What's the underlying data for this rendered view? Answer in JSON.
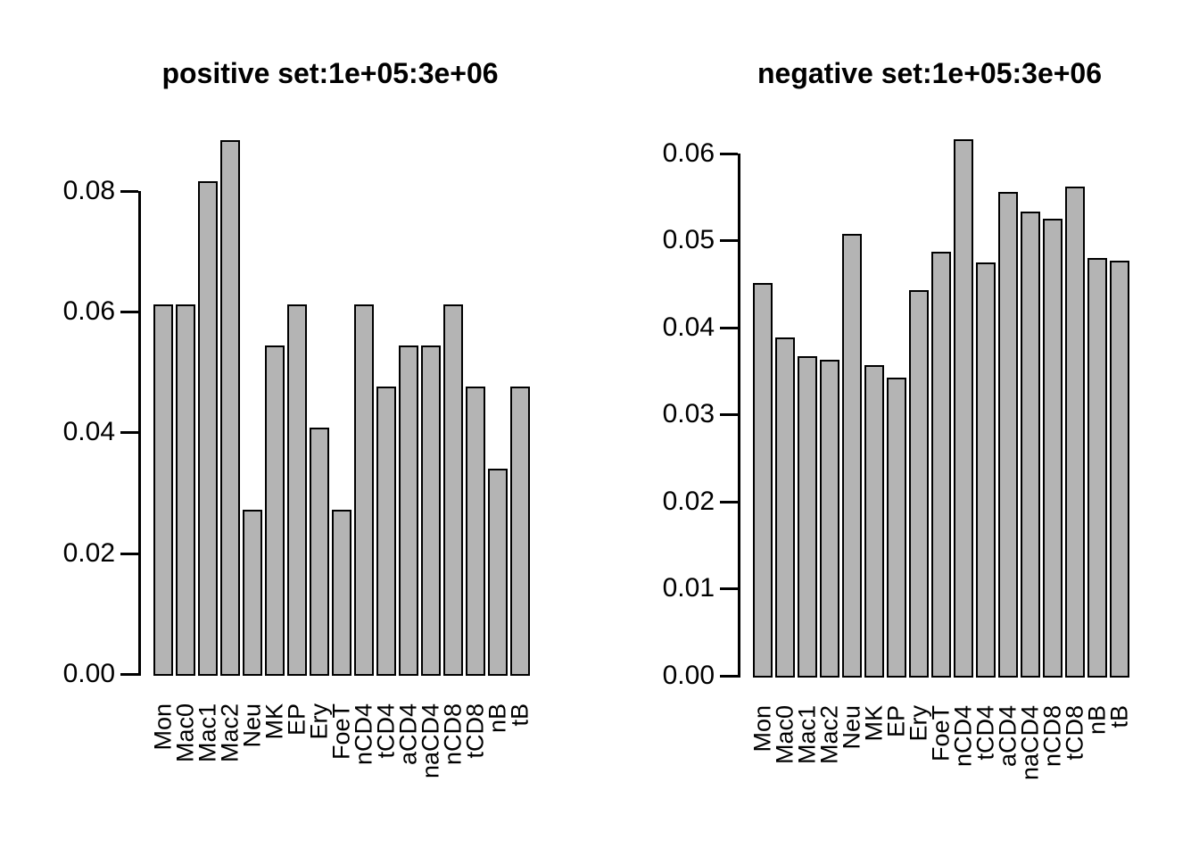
{
  "figure": {
    "background": "#ffffff",
    "text_color": "#000000"
  },
  "chart_data": [
    {
      "type": "bar",
      "title": "positive set:1e+05:3e+06",
      "categories": [
        "Mon",
        "Mac0",
        "Mac1",
        "Mac2",
        "Neu",
        "MK",
        "EP",
        "Ery",
        "FoeT",
        "nCD4",
        "tCD4",
        "aCD4",
        "naCD4",
        "nCD8",
        "tCD8",
        "nB",
        "tB"
      ],
      "values": [
        0.0612,
        0.0612,
        0.0816,
        0.0884,
        0.0272,
        0.0544,
        0.0612,
        0.0408,
        0.0272,
        0.0612,
        0.0476,
        0.0544,
        0.0544,
        0.0612,
        0.0476,
        0.034,
        0.0476
      ],
      "xlabel": "",
      "ylabel": "",
      "ylim": [
        0,
        0.0884
      ],
      "yticks": [
        0,
        0.02,
        0.04,
        0.06,
        0.08
      ],
      "ytick_labels": [
        "0.00",
        "0.02",
        "0.04",
        "0.06",
        "0.08"
      ],
      "xtick_rotation": 90,
      "grid": false,
      "legend": "none",
      "bar_fill": "#b4b4b4",
      "bar_border": "#000000"
    },
    {
      "type": "bar",
      "title": "negative set:1e+05:3e+06",
      "categories": [
        "Mon",
        "Mac0",
        "Mac1",
        "Mac2",
        "Neu",
        "MK",
        "EP",
        "Ery",
        "FoeT",
        "nCD4",
        "tCD4",
        "aCD4",
        "naCD4",
        "nCD8",
        "tCD8",
        "nB",
        "tB"
      ],
      "values": [
        0.0451,
        0.0388,
        0.0367,
        0.0363,
        0.0507,
        0.0357,
        0.0342,
        0.0443,
        0.0487,
        0.0616,
        0.0475,
        0.0556,
        0.0533,
        0.0525,
        0.0562,
        0.048,
        0.0477
      ],
      "xlabel": "",
      "ylabel": "",
      "ylim": [
        0,
        0.0616
      ],
      "yticks": [
        0,
        0.01,
        0.02,
        0.03,
        0.04,
        0.05,
        0.06
      ],
      "ytick_labels": [
        "0.00",
        "0.01",
        "0.02",
        "0.03",
        "0.04",
        "0.05",
        "0.06"
      ],
      "xtick_rotation": 90,
      "grid": false,
      "legend": "none",
      "bar_fill": "#b4b4b4",
      "bar_border": "#000000"
    }
  ]
}
